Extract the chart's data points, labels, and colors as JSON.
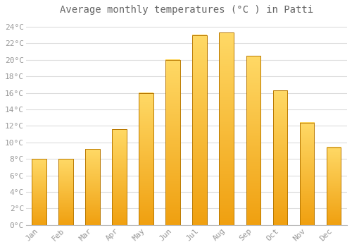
{
  "title": "Average monthly temperatures (°C ) in Patti",
  "months": [
    "Jan",
    "Feb",
    "Mar",
    "Apr",
    "May",
    "Jun",
    "Jul",
    "Aug",
    "Sep",
    "Oct",
    "Nov",
    "Dec"
  ],
  "values": [
    8.0,
    8.0,
    9.2,
    11.6,
    16.0,
    20.0,
    23.0,
    23.3,
    20.5,
    16.3,
    12.4,
    9.4
  ],
  "bar_color_top": "#FFD966",
  "bar_color_bottom": "#F0A010",
  "bar_edge_color": "#B87800",
  "background_color": "#FFFFFF",
  "grid_color": "#DDDDDD",
  "text_color": "#999999",
  "ylim": [
    0,
    25
  ],
  "yticks": [
    0,
    2,
    4,
    6,
    8,
    10,
    12,
    14,
    16,
    18,
    20,
    22,
    24
  ],
  "title_fontsize": 10,
  "tick_fontsize": 8,
  "font_family": "monospace"
}
